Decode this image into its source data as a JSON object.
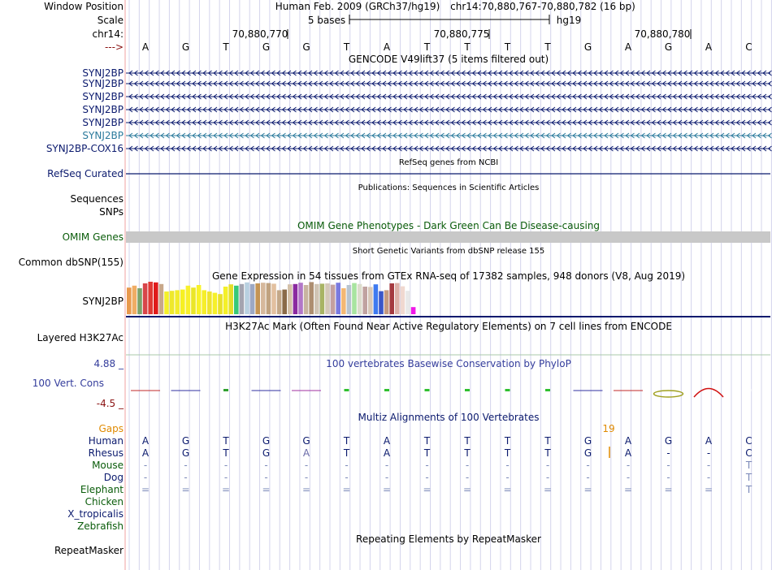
{
  "header": {
    "window_position_label": "Window Position",
    "assembly_text": "Human Feb. 2009 (GRCh37/hg19)",
    "position_text": "chr14:70,880,767-70,880,782 (16 bp)",
    "scale_label": "Scale",
    "scale_text": "5 bases",
    "scale_db": "hg19",
    "chrom_label": "chr14:",
    "ticks": [
      "70,880,770",
      "70,880,775",
      "70,880,780"
    ],
    "strand_label": "--->"
  },
  "bases": [
    "A",
    "G",
    "T",
    "G",
    "G",
    "T",
    "A",
    "T",
    "T",
    "T",
    "T",
    "G",
    "A",
    "G",
    "A",
    "C"
  ],
  "gencode": {
    "title": "GENCODE V49lift37 (5 items filtered out)",
    "genes": [
      "SYNJ2BP",
      "SYNJ2BP",
      "SYNJ2BP",
      "SYNJ2BP",
      "SYNJ2BP",
      "SYNJ2BP",
      "SYNJ2BP-COX16"
    ]
  },
  "refseq": {
    "title": "RefSeq genes from NCBI",
    "label": "RefSeq Curated"
  },
  "publications": {
    "title": "Publications: Sequences in Scientific Articles",
    "label1": "Sequences",
    "label2": "SNPs"
  },
  "omim": {
    "title": "OMIM Gene Phenotypes - Dark Green Can Be Disease-causing",
    "label": "OMIM Genes"
  },
  "dbsnp": {
    "title": "Short Genetic Variants from dbSNP release 155",
    "label": "Common dbSNP(155)"
  },
  "gtex": {
    "title": "Gene Expression in 54 tissues from GTEx RNA-seq of 17382 samples, 948 donors (V8, Aug 2019)",
    "label": "SYNJ2BP",
    "tissue_levels": [
      0.82,
      0.88,
      0.8,
      0.95,
      1.0,
      0.98,
      0.93,
      0.7,
      0.72,
      0.74,
      0.76,
      0.88,
      0.82,
      0.9,
      0.74,
      0.7,
      0.66,
      0.62,
      0.85,
      0.92,
      0.88,
      0.93,
      0.98,
      0.93,
      0.95,
      0.97,
      0.96,
      0.94,
      0.74,
      0.76,
      0.92,
      0.93,
      0.97,
      0.9,
      0.99,
      0.93,
      0.94,
      0.95,
      0.91,
      0.97,
      0.8,
      0.9,
      0.96,
      0.93,
      0.85,
      0.84,
      0.92,
      0.71,
      0.74,
      0.95,
      0.96,
      0.86,
      0.72,
      0.22
    ],
    "tissue_colors": [
      "#e8994c",
      "#f0ad64",
      "#7da36a",
      "#d8464a",
      "#e03a34",
      "#e01b1b",
      "#c8a88a",
      "#f4f02a",
      "#eee82c",
      "#f2ec2c",
      "#f6f022",
      "#f8f02c",
      "#eae628",
      "#f8f22a",
      "#f6ee2a",
      "#eee430",
      "#f6f02a",
      "#e8e02a",
      "#f4f028",
      "#e4de2a",
      "#38c878",
      "#a4a4b0",
      "#b8d0e0",
      "#9ca8c4",
      "#c49454",
      "#d6b89c",
      "#c0a280",
      "#e2c0a0",
      "#c4a888",
      "#8a6a48",
      "#d4c0a8",
      "#8a2aa0",
      "#b276c8",
      "#c8b4a0",
      "#ad8e70",
      "#d0c4b4",
      "#a8b464",
      "#d4c8b8",
      "#c4a0a0",
      "#7a7ae0",
      "#f4b874",
      "#b8c4d0",
      "#a8e4a0",
      "#dcdccc",
      "#c0a2a0",
      "#d8c8b8",
      "#3e7af0",
      "#3a56c8",
      "#c49a80",
      "#a43a40",
      "#dcb0a8",
      "#f0d8d0",
      "#e8e8e8",
      "#f018e8"
    ]
  },
  "h3k27ac": {
    "title": "H3K27Ac Mark (Often Found Near Active Regulatory Elements) on 7 cell lines from ENCODE",
    "label": "Layered H3K27Ac"
  },
  "cons": {
    "title": "100 vertebrates Basewise Conservation by PhyloP",
    "label": "100 Vert. Cons",
    "max": "4.88 _",
    "min": "-4.5 _"
  },
  "multiz": {
    "title": "Multiz Alignments of 100 Vertebrates",
    "gaps_label": "Gaps",
    "gap_count": "19",
    "species": [
      {
        "name": "Human",
        "row": [
          "A",
          "G",
          "T",
          "G",
          "G",
          "T",
          "A",
          "T",
          "T",
          "T",
          "T",
          "G",
          "A",
          "G",
          "A",
          "C"
        ]
      },
      {
        "name": "Rhesus",
        "row": [
          "A",
          "G",
          "T",
          "G",
          "A",
          "T",
          "A",
          "T",
          "T",
          "T",
          "T",
          "G",
          "A",
          "-",
          "-",
          "C"
        ]
      },
      {
        "name": "Mouse",
        "row": [
          "-",
          "-",
          "-",
          "-",
          "-",
          "-",
          "-",
          "-",
          "-",
          "-",
          "-",
          "-",
          "-",
          "-",
          "-",
          "T"
        ]
      },
      {
        "name": "Dog",
        "row": [
          "-",
          "-",
          "-",
          "-",
          "-",
          "-",
          "-",
          "-",
          "-",
          "-",
          "-",
          "-",
          "-",
          "-",
          "-",
          "T"
        ]
      },
      {
        "name": "Elephant",
        "row": [
          "=",
          "=",
          "=",
          "=",
          "=",
          "=",
          "=",
          "=",
          "=",
          "=",
          "=",
          "=",
          "=",
          "=",
          "=",
          "T"
        ]
      },
      {
        "name": "Chicken",
        "row": []
      },
      {
        "name": "X_tropicalis",
        "row": []
      },
      {
        "name": "Zebrafish",
        "row": []
      }
    ]
  },
  "repeatmasker": {
    "title": "Repeating Elements by RepeatMasker",
    "label": "RepeatMasker"
  },
  "colors": {
    "navy": "#0b1a6e",
    "dark_green": "#0a5c0a",
    "omim_bar": "#c8c8c8",
    "gap_orange": "#e08a00"
  }
}
